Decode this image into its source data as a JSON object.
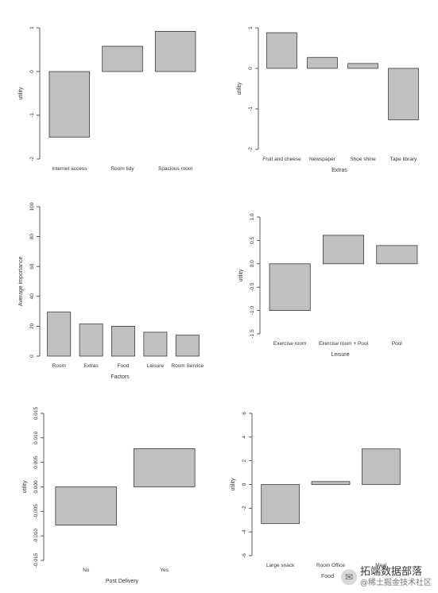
{
  "chart_data": [
    {
      "type": "bar",
      "title": "",
      "xlabel": "",
      "ylabel": "utility",
      "ylim": [
        -2,
        1
      ],
      "yticks": [
        1,
        0,
        -1,
        -2
      ],
      "categories": [
        "Internet access",
        "Room tidy",
        "Spacious room"
      ],
      "values": [
        -1.5,
        0.58,
        0.92
      ]
    },
    {
      "type": "bar",
      "title": "",
      "xlabel": "Extras",
      "ylabel": "utility",
      "ylim": [
        -2,
        1
      ],
      "yticks": [
        1,
        0,
        -1,
        -2
      ],
      "categories": [
        "Fruit and cheese",
        "Newspaper",
        "Shoe shine",
        "Tape library"
      ],
      "values": [
        0.88,
        0.27,
        0.12,
        -1.27
      ]
    },
    {
      "type": "bar",
      "title": "",
      "xlabel": "Factors",
      "ylabel": "Average importance",
      "ylim": [
        0,
        100
      ],
      "yticks": [
        100,
        80,
        60,
        40,
        20,
        0
      ],
      "categories": [
        "Room",
        "Extras",
        "Food",
        "Leisure",
        "Room Service"
      ],
      "values": [
        29.5,
        21.5,
        20,
        16,
        14
      ]
    },
    {
      "type": "bar",
      "title": "",
      "xlabel": "Leisure",
      "ylabel": "utility",
      "ylim": [
        -1.5,
        1
      ],
      "yticks": [
        1.0,
        0.5,
        0.0,
        -0.5,
        -1.0,
        -1.5
      ],
      "categories": [
        "Exercise room",
        "Exercise room + Pool",
        "Pool"
      ],
      "values": [
        -1.0,
        0.61,
        0.39
      ]
    },
    {
      "type": "bar",
      "title": "",
      "xlabel": "Post Delivery",
      "ylabel": "utility",
      "ylim": [
        -0.015,
        0.015
      ],
      "yticks": [
        0.015,
        0.01,
        0.005,
        0.0,
        -0.005,
        -0.01,
        -0.015
      ],
      "categories": [
        "No",
        "Yes"
      ],
      "values": [
        -0.0078,
        0.0078
      ]
    },
    {
      "type": "bar",
      "title": "",
      "xlabel": "Food",
      "ylabel": "utility",
      "ylim": [
        -6,
        6
      ],
      "yticks": [
        6,
        4,
        2,
        0,
        -2,
        -4,
        -6
      ],
      "categories": [
        "Large snack",
        "Room Office",
        "Meal"
      ],
      "values": [
        -3.3,
        0.25,
        3.0
      ]
    }
  ],
  "colors": {
    "bar_fill": "#c0c0c0",
    "bar_stroke": "#3a3a3a",
    "axis": "#333333"
  },
  "watermark": {
    "icon": "chat-bubble-icon",
    "line1": "拓端数据部落",
    "line2": "@稀土掘金技术社区"
  }
}
